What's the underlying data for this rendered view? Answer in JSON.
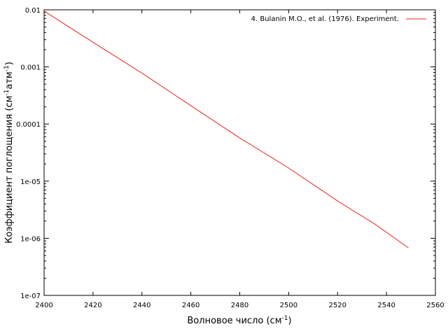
{
  "chart_data": {
    "type": "line",
    "title": "",
    "xlabel": "Волновое число (см",
    "xlabel_sup": "-1",
    "xlabel_end": ")",
    "ylabel_parts": [
      "Коэффициент поглощения (см",
      "-1",
      "атм",
      "-1",
      ")"
    ],
    "xlim": [
      2400,
      2560
    ],
    "ylim": [
      1e-07,
      0.01
    ],
    "yscale": "log",
    "grid": false,
    "legend_position": "top-right",
    "x_ticks": [
      2400,
      2420,
      2440,
      2460,
      2480,
      2500,
      2520,
      2540,
      2560
    ],
    "x_tick_labels": [
      "2400",
      "2420",
      "2440",
      "2460",
      "2480",
      "2500",
      "2520",
      "2540",
      "2560"
    ],
    "y_ticks": [
      1e-07,
      1e-06,
      1e-05,
      0.0001,
      0.001,
      0.01
    ],
    "y_tick_labels": [
      "1e-07",
      "1e-06",
      "1e-05",
      "0.0001",
      "0.001",
      "0.01"
    ],
    "series": [
      {
        "name": "4. Bulanin M.O., et al. (1976). Experiment.",
        "color": "#e8261c",
        "x": [
          2400,
          2420,
          2440,
          2460,
          2480,
          2500,
          2520,
          2535,
          2549
        ],
        "y": [
          0.0095,
          0.0027,
          0.00078,
          0.00021,
          5.7e-05,
          1.7e-05,
          4.5e-06,
          1.8e-06,
          6.8e-07
        ]
      }
    ]
  }
}
